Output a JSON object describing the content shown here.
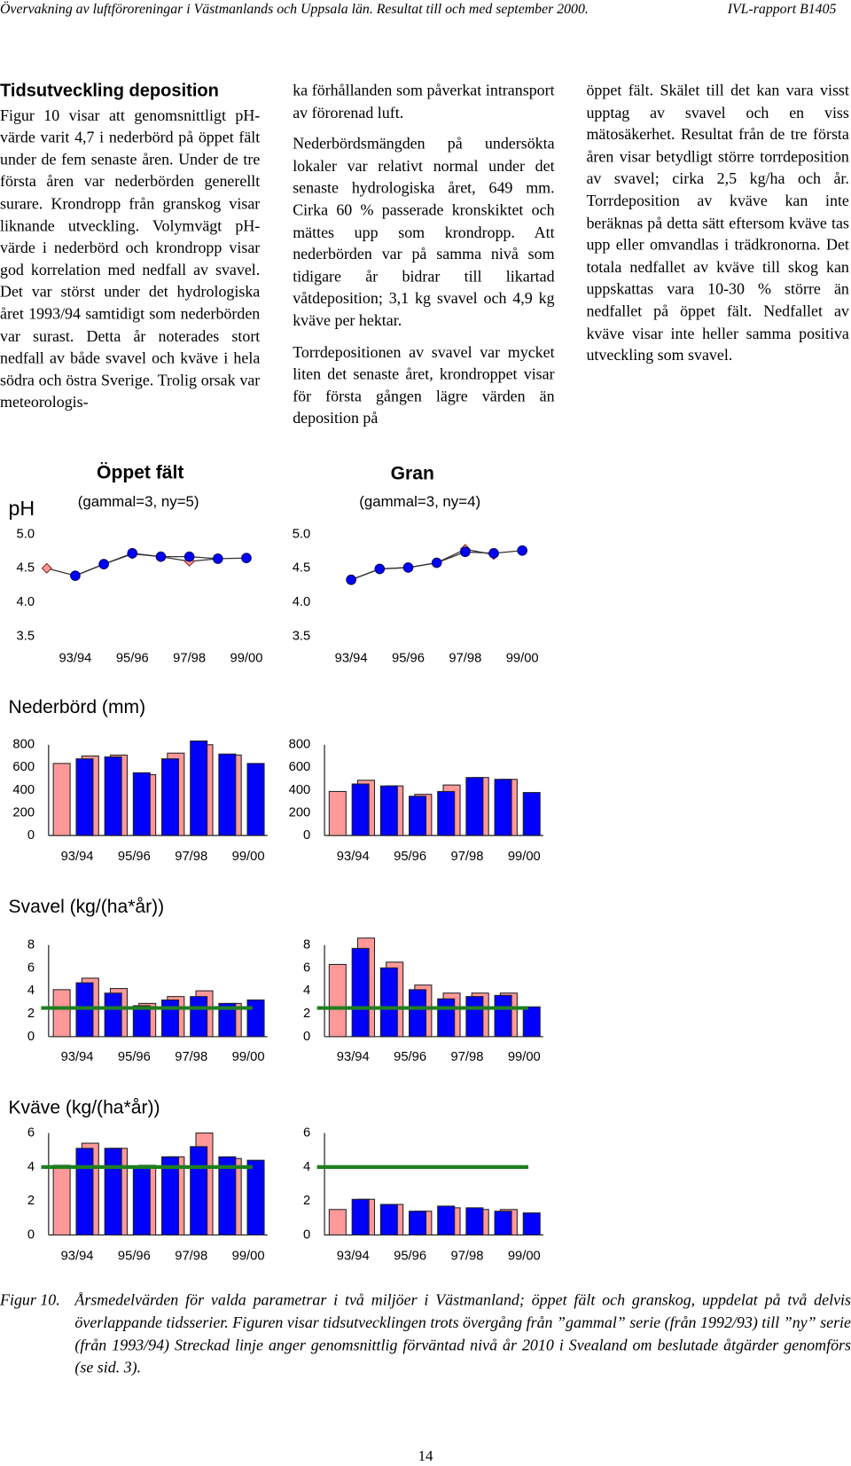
{
  "header": {
    "left": "Övervakning av luftföroreningar i Västmanlands och Uppsala län. Resultat till och med september 2000.",
    "right": "IVL-rapport B1405"
  },
  "column1": {
    "heading": "Tidsutveckling deposition",
    "paragraphs": [
      "Figur 10 visar att genomsnittligt pH-värde varit 4,7 i nederbörd på öppet fält under de fem senaste åren. Under de tre första åren var nederbörden generellt surare. Krondropp från granskog visar liknande utveckling. Volymvägt pH-värde i nederbörd och krondropp visar god korrelation med nedfall av svavel. Det var störst under det hydrologiska året 1993/94 samtidigt som nederbörden var surast. Detta år noterades stort nedfall av både svavel och kväve i hela södra och östra Sverige. Trolig orsak var meteorologis-"
    ]
  },
  "column2": {
    "paragraphs": [
      "ka förhållanden som påverkat intransport av förorenad luft.",
      "Nederbördsmängden på undersökta lokaler var relativt normal under det senaste hydrologiska året, 649 mm. Cirka 60 % passerade kronskiktet och mättes upp som krondropp. Att nederbörden var på samma nivå som tidigare år bidrar till likartad våtdeposition; 3,1 kg svavel och 4,9 kg kväve per hektar.",
      "Torrdepositionen av svavel var mycket liten det senaste året, krondroppet visar för första gången lägre värden än deposition på"
    ]
  },
  "column3": {
    "paragraphs": [
      "öppet fält. Skälet till det kan vara visst upptag av svavel och en viss mätosäkerhet. Resultat från de tre första åren visar betydligt större torrdeposition av svavel; cirka 2,5 kg/ha och år. Torrdeposition av kväve kan inte beräknas på detta sätt eftersom kväve tas upp eller omvandlas i trädkronorna. Det totala nedfallet av kväve till skog kan uppskattas vara 10-30 % större än nedfallet på öppet fält. Nedfallet av kväve visar inte heller samma positiva utveckling som svavel."
    ]
  },
  "figure": {
    "columns": [
      {
        "title": "Öppet fält",
        "subtitle": "(gammal=3, ny=5)"
      },
      {
        "title": "Gran",
        "subtitle": "(gammal=3, ny=4)"
      }
    ],
    "rows": [
      {
        "title": "pH",
        "panels": [
          {
            "type": "line",
            "categories": [
              null,
              "93/94",
              null,
              "95/96",
              null,
              "97/98",
              null,
              "99/00"
            ],
            "ylim": [
              3.5,
              5.0
            ],
            "yticks": [
              {
                "value": 5.0,
                "label": "5.0"
              },
              {
                "value": 4.5,
                "label": "4.5"
              },
              {
                "value": 4.0,
                "label": "4.0"
              },
              {
                "value": 3.5,
                "label": "3.5"
              }
            ],
            "series": [
              {
                "color": "#ff9999",
                "values": [
                  4.5,
                  4.39,
                  4.56,
                  4.71,
                  4.67,
                  4.6,
                  4.64,
                  null
                ]
              },
              {
                "color": "#0000ff",
                "values": [
                  null,
                  4.39,
                  4.56,
                  4.72,
                  4.67,
                  4.67,
                  4.64,
                  4.65
                ]
              }
            ]
          },
          {
            "type": "line",
            "categories": [
              null,
              "93/94",
              null,
              "95/96",
              null,
              "97/98",
              null,
              "99/00"
            ],
            "ylim": [
              3.5,
              5.0
            ],
            "yticks": [
              {
                "value": 5.0,
                "label": "5.0"
              },
              {
                "value": 4.5,
                "label": "4.5"
              },
              {
                "value": 4.0,
                "label": "4.0"
              },
              {
                "value": 3.5,
                "label": "3.5"
              }
            ],
            "series": [
              {
                "color": "#ff9999",
                "values": [
                  null,
                  4.33,
                  4.49,
                  4.51,
                  4.58,
                  4.78,
                  4.7,
                  null
                ]
              },
              {
                "color": "#0000ff",
                "values": [
                  null,
                  4.33,
                  4.49,
                  4.51,
                  4.58,
                  4.74,
                  4.72,
                  4.76
                ]
              }
            ]
          }
        ]
      },
      {
        "title": "Nederbörd (mm)",
        "panels": [
          {
            "type": "bar",
            "categories": [
              null,
              "93/94",
              null,
              "95/96",
              null,
              "97/98",
              null,
              "99/00"
            ],
            "ylim": [
              0,
              800
            ],
            "yticks": [
              800,
              600,
              400,
              200,
              0
            ],
            "series": [
              {
                "color": "#ff9999",
                "values": [
                  635,
                  701,
                  709,
                  536,
                  726,
                  800,
                  709,
                  null
                ]
              },
              {
                "color": "#0000ff",
                "values": [
                  null,
                  676,
                  693,
                  553,
                  676,
                  833,
                  718,
                  635
                ]
              }
            ]
          },
          {
            "type": "bar",
            "categories": [
              null,
              "93/94",
              null,
              "95/96",
              null,
              "97/98",
              null,
              "99/00"
            ],
            "ylim": [
              0,
              800
            ],
            "yticks": [
              800,
              600,
              400,
              200,
              0
            ],
            "series": [
              {
                "color": "#ff9999",
                "values": [
                  388,
                  487,
                  437,
                  363,
                  445,
                  511,
                  495,
                  null
                ]
              },
              {
                "color": "#0000ff",
                "values": [
                  null,
                  454,
                  437,
                  346,
                  388,
                  511,
                  495,
                  379
                ]
              }
            ]
          }
        ]
      },
      {
        "title": "Svavel (kg/(ha*år))",
        "panels": [
          {
            "type": "bar",
            "categories": [
              null,
              "93/94",
              null,
              "95/96",
              null,
              "97/98",
              null,
              "99/00"
            ],
            "ylim": [
              0,
              8
            ],
            "yticks": [
              8,
              6,
              4,
              2,
              0
            ],
            "series": [
              {
                "color": "#ff9999",
                "values": [
                  4.1,
                  5.1,
                  4.2,
                  2.9,
                  3.5,
                  4.0,
                  2.9,
                  null
                ]
              },
              {
                "color": "#0000ff",
                "values": [
                  null,
                  4.7,
                  3.8,
                  2.7,
                  3.2,
                  3.5,
                  2.9,
                  3.2
                ]
              }
            ],
            "reference_line": {
              "value": 2.5,
              "color": "#1f7f1f"
            }
          },
          {
            "type": "bar",
            "categories": [
              null,
              "93/94",
              null,
              "95/96",
              null,
              "97/98",
              null,
              "99/00"
            ],
            "ylim": [
              0,
              8
            ],
            "yticks": [
              8,
              6,
              4,
              2,
              0
            ],
            "series": [
              {
                "color": "#ff9999",
                "values": [
                  6.3,
                  8.6,
                  6.5,
                  4.5,
                  3.8,
                  3.8,
                  3.8,
                  null
                ]
              },
              {
                "color": "#0000ff",
                "values": [
                  null,
                  7.7,
                  6.0,
                  4.1,
                  3.3,
                  3.5,
                  3.6,
                  2.6
                ]
              }
            ],
            "reference_line": {
              "value": 2.5,
              "color": "#1f7f1f"
            }
          }
        ]
      },
      {
        "title": "Kväve (kg/(ha*år))",
        "panels": [
          {
            "type": "bar",
            "categories": [
              null,
              "93/94",
              null,
              "95/96",
              null,
              "97/98",
              null,
              "99/00"
            ],
            "ylim": [
              0,
              6
            ],
            "yticks": [
              6,
              4,
              2,
              0
            ],
            "series": [
              {
                "color": "#ff9999",
                "values": [
                  4.1,
                  5.4,
                  5.1,
                  4.1,
                  4.6,
                  6.0,
                  4.5,
                  null
                ]
              },
              {
                "color": "#0000ff",
                "values": [
                  null,
                  5.1,
                  5.1,
                  4.0,
                  4.6,
                  5.2,
                  4.6,
                  4.4
                ]
              }
            ],
            "reference_line": {
              "value": 4.0,
              "color": "#1f7f1f"
            }
          },
          {
            "type": "bar",
            "categories": [
              null,
              "93/94",
              null,
              "95/96",
              null,
              "97/98",
              null,
              "99/00"
            ],
            "ylim": [
              0,
              6
            ],
            "yticks": [
              6,
              4,
              2,
              0
            ],
            "series": [
              {
                "color": "#ff9999",
                "values": [
                  1.5,
                  2.1,
                  1.8,
                  1.4,
                  1.6,
                  1.5,
                  1.5,
                  null
                ]
              },
              {
                "color": "#0000ff",
                "values": [
                  null,
                  2.1,
                  1.8,
                  1.4,
                  1.7,
                  1.6,
                  1.4,
                  1.3
                ]
              }
            ],
            "reference_line": {
              "value": 4.0,
              "color": "#1f7f1f"
            }
          }
        ]
      }
    ],
    "caption": {
      "label": "Figur 10.",
      "text": "Årsmedelvärden för valda parametrar i två miljöer i Västmanland; öppet fält och granskog, uppdelat på två delvis överlappande tidsserier. Figuren visar tidsutvecklingen trots övergång från ”gammal” serie (från 1992/93) till ”ny” serie (från 1993/94) Streckad linje anger genomsnittlig förväntad nivå år 2010 i Svealand om beslutade åtgärder genomförs (se sid. 3)."
    }
  },
  "page_number": "14"
}
